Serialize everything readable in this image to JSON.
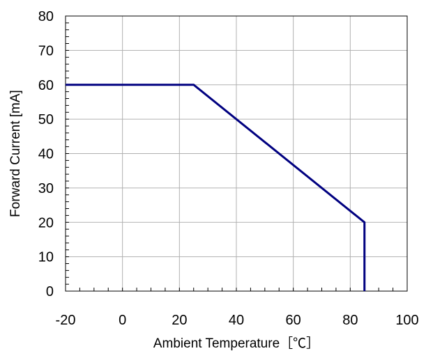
{
  "chart_data": {
    "type": "line",
    "xlabel": "Ambient Temperature［℃］",
    "ylabel": "Forward Current [mA]",
    "xlim": [
      -20,
      100
    ],
    "ylim": [
      0,
      80
    ],
    "x_ticks": [
      -20,
      0,
      20,
      40,
      60,
      80,
      100
    ],
    "y_ticks": [
      0,
      10,
      20,
      30,
      40,
      50,
      60,
      70,
      80
    ],
    "grid": true,
    "series": [
      {
        "color": "#000080",
        "points": [
          {
            "x": -20,
            "y": 60
          },
          {
            "x": 25,
            "y": 60
          },
          {
            "x": 85,
            "y": 20
          },
          {
            "x": 85,
            "y": 0
          }
        ]
      }
    ]
  }
}
